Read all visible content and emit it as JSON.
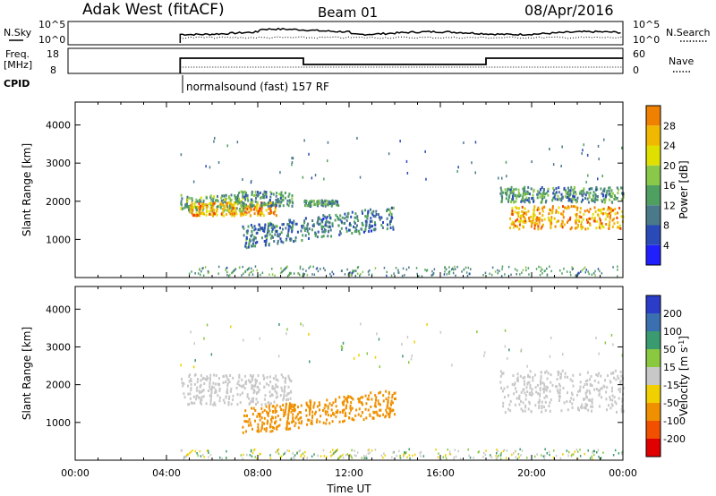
{
  "header": {
    "station": "Adak West (fitACF)",
    "beam": "Beam 01",
    "date": "08/Apr/2016"
  },
  "status_panels": {
    "nsky_label": "N.Sky",
    "nsearch_label": "N.Search",
    "freq_label_line1": "Freq.",
    "freq_label_line2": "[MHz]",
    "nave_label": "Nave",
    "cpid_label": "CPID",
    "cpid_text": "normalsound (fast) 157 RF",
    "nsky_ticks": [
      "10^5",
      "10^0"
    ],
    "nsearch_ticks": [
      "10^5",
      "10^0"
    ],
    "freq_ticks": [
      "18",
      "8"
    ],
    "nave_ticks": [
      "60",
      "0"
    ]
  },
  "chart_data": [
    {
      "type": "heatmap",
      "name": "power",
      "ylabel": "Slant Range [km]",
      "yticks": [
        1000,
        2000,
        3000,
        4000
      ],
      "ylim": [
        0,
        4600
      ],
      "colorbar_label": "Power [dB]",
      "colorbar_ticks": [
        "4",
        "8",
        "12",
        "16",
        "20",
        "24",
        "28"
      ],
      "colors": [
        "#2020ff",
        "#2a4ab8",
        "#4a7a8a",
        "#4fa060",
        "#8ac84a",
        "#e0e000",
        "#f0b800",
        "#f08000",
        "#f04000",
        "#e00000"
      ],
      "echo_regions": [
        {
          "time": [
            4.6,
            7.4
          ],
          "range": [
            1750,
            2200
          ],
          "value": 12
        },
        {
          "time": [
            5.0,
            8.8
          ],
          "range": [
            1650,
            2000
          ],
          "value": 22
        },
        {
          "time": [
            7.0,
            9.5
          ],
          "range": [
            1900,
            2300
          ],
          "value": 10
        },
        {
          "time": [
            10.0,
            11.5
          ],
          "range": [
            1900,
            2050
          ],
          "value": 10
        },
        {
          "time": [
            7.3,
            14.0
          ],
          "range": [
            800,
            1400
          ],
          "value": 8
        },
        {
          "time": [
            18.6,
            24.0
          ],
          "range": [
            2000,
            2400
          ],
          "value": 10
        },
        {
          "time": [
            19.0,
            24.0
          ],
          "range": [
            1300,
            1900
          ],
          "value": 22
        }
      ]
    },
    {
      "type": "heatmap",
      "name": "velocity",
      "ylabel": "Slant Range [km]",
      "xlabel": "Time UT",
      "xticks": [
        "00:00",
        "04:00",
        "08:00",
        "12:00",
        "16:00",
        "20:00",
        "00:00"
      ],
      "yticks": [
        1000,
        2000,
        3000,
        4000
      ],
      "ylim": [
        0,
        4600
      ],
      "colorbar_label": "Velocity [m s^-1]",
      "colorbar_ticks": [
        "200",
        "100",
        "50",
        "15",
        "-15",
        "-50",
        "-100",
        "-200"
      ],
      "colors": [
        "#2a3cc8",
        "#3a6fb0",
        "#3a9a70",
        "#8ac840",
        "#c8c8c8",
        "#f0d000",
        "#f09000",
        "#f05000",
        "#e00000"
      ],
      "echo_regions": [
        {
          "time": [
            4.6,
            9.5
          ],
          "range": [
            1500,
            2300
          ],
          "value": 0
        },
        {
          "time": [
            7.3,
            14.0
          ],
          "range": [
            700,
            1400
          ],
          "value": -60
        },
        {
          "time": [
            18.6,
            24.0
          ],
          "range": [
            1300,
            2400
          ],
          "value": 0
        }
      ]
    }
  ]
}
